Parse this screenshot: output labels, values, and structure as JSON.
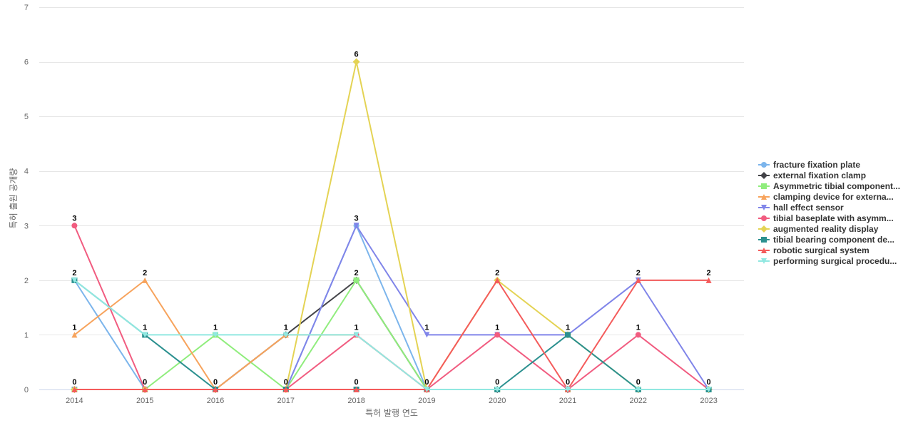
{
  "chart_data": {
    "type": "line",
    "title": "",
    "xlabel": "특허 발행 연도",
    "ylabel": "특허 출원 공개량",
    "categories": [
      "2014",
      "2015",
      "2016",
      "2017",
      "2018",
      "2019",
      "2020",
      "2021",
      "2022",
      "2023"
    ],
    "ylim": [
      0,
      7
    ],
    "yticks": [
      0,
      1,
      2,
      3,
      4,
      5,
      6,
      7
    ],
    "grid": true,
    "legend_position": "right",
    "series": [
      {
        "name": "fracture fixation plate",
        "color": "#7cb5ec",
        "marker": "circle",
        "values": [
          2,
          0,
          0,
          0,
          3,
          0,
          0,
          0,
          0,
          0
        ]
      },
      {
        "name": "external fixation clamp",
        "color": "#434348",
        "marker": "diamond",
        "values": [
          0,
          0,
          0,
          1,
          2,
          0,
          0,
          0,
          0,
          0
        ]
      },
      {
        "name": "Asymmetric tibial component...",
        "color": "#90ed7d",
        "marker": "square",
        "values": [
          0,
          0,
          1,
          0,
          2,
          0,
          0,
          0,
          0,
          0
        ]
      },
      {
        "name": "clamping device for externa...",
        "color": "#f7a35c",
        "marker": "triangle",
        "values": [
          1,
          2,
          0,
          1,
          1,
          0,
          0,
          0,
          0,
          0
        ]
      },
      {
        "name": "hall effect sensor",
        "color": "#8085e9",
        "marker": "triangle-down",
        "values": [
          0,
          0,
          0,
          0,
          3,
          1,
          1,
          1,
          2,
          0
        ]
      },
      {
        "name": "tibial baseplate with asymm...",
        "color": "#f15c80",
        "marker": "circle",
        "values": [
          3,
          0,
          0,
          0,
          1,
          0,
          1,
          0,
          1,
          0
        ]
      },
      {
        "name": "augmented reality display",
        "color": "#e4d354",
        "marker": "diamond",
        "values": [
          0,
          0,
          0,
          0,
          6,
          0,
          2,
          1,
          0,
          0
        ]
      },
      {
        "name": "tibial bearing component de...",
        "color": "#2b908f",
        "marker": "square",
        "values": [
          2,
          1,
          0,
          0,
          0,
          0,
          0,
          1,
          0,
          0
        ]
      },
      {
        "name": "robotic surgical system",
        "color": "#f45b5b",
        "marker": "triangle",
        "values": [
          0,
          0,
          0,
          0,
          0,
          0,
          2,
          0,
          2,
          2
        ]
      },
      {
        "name": "performing surgical procedu...",
        "color": "#91e8e1",
        "marker": "triangle-down",
        "values": [
          2,
          1,
          1,
          1,
          1,
          0,
          0,
          0,
          0,
          0
        ]
      }
    ],
    "data_labels": [
      {
        "x": "2014",
        "y": 3,
        "text": "3"
      },
      {
        "x": "2014",
        "y": 2,
        "text": "2"
      },
      {
        "x": "2014",
        "y": 1,
        "text": "1"
      },
      {
        "x": "2014",
        "y": 0,
        "text": "0"
      },
      {
        "x": "2015",
        "y": 2,
        "text": "2"
      },
      {
        "x": "2015",
        "y": 1,
        "text": "1"
      },
      {
        "x": "2015",
        "y": 0,
        "text": "0"
      },
      {
        "x": "2016",
        "y": 1,
        "text": "1"
      },
      {
        "x": "2016",
        "y": 0,
        "text": "0"
      },
      {
        "x": "2017",
        "y": 1,
        "text": "1"
      },
      {
        "x": "2017",
        "y": 0,
        "text": "0"
      },
      {
        "x": "2018",
        "y": 6,
        "text": "6"
      },
      {
        "x": "2018",
        "y": 3,
        "text": "3"
      },
      {
        "x": "2018",
        "y": 2,
        "text": "2"
      },
      {
        "x": "2018",
        "y": 1,
        "text": "1"
      },
      {
        "x": "2018",
        "y": 0,
        "text": "0"
      },
      {
        "x": "2019",
        "y": 1,
        "text": "1"
      },
      {
        "x": "2019",
        "y": 0,
        "text": "0"
      },
      {
        "x": "2020",
        "y": 2,
        "text": "2"
      },
      {
        "x": "2020",
        "y": 1,
        "text": "1"
      },
      {
        "x": "2020",
        "y": 0,
        "text": "0"
      },
      {
        "x": "2021",
        "y": 1,
        "text": "1"
      },
      {
        "x": "2021",
        "y": 0,
        "text": "0"
      },
      {
        "x": "2022",
        "y": 2,
        "text": "2"
      },
      {
        "x": "2022",
        "y": 1,
        "text": "1"
      },
      {
        "x": "2022",
        "y": 0,
        "text": "0"
      },
      {
        "x": "2023",
        "y": 2,
        "text": "2"
      },
      {
        "x": "2023",
        "y": 0,
        "text": "0"
      }
    ]
  }
}
